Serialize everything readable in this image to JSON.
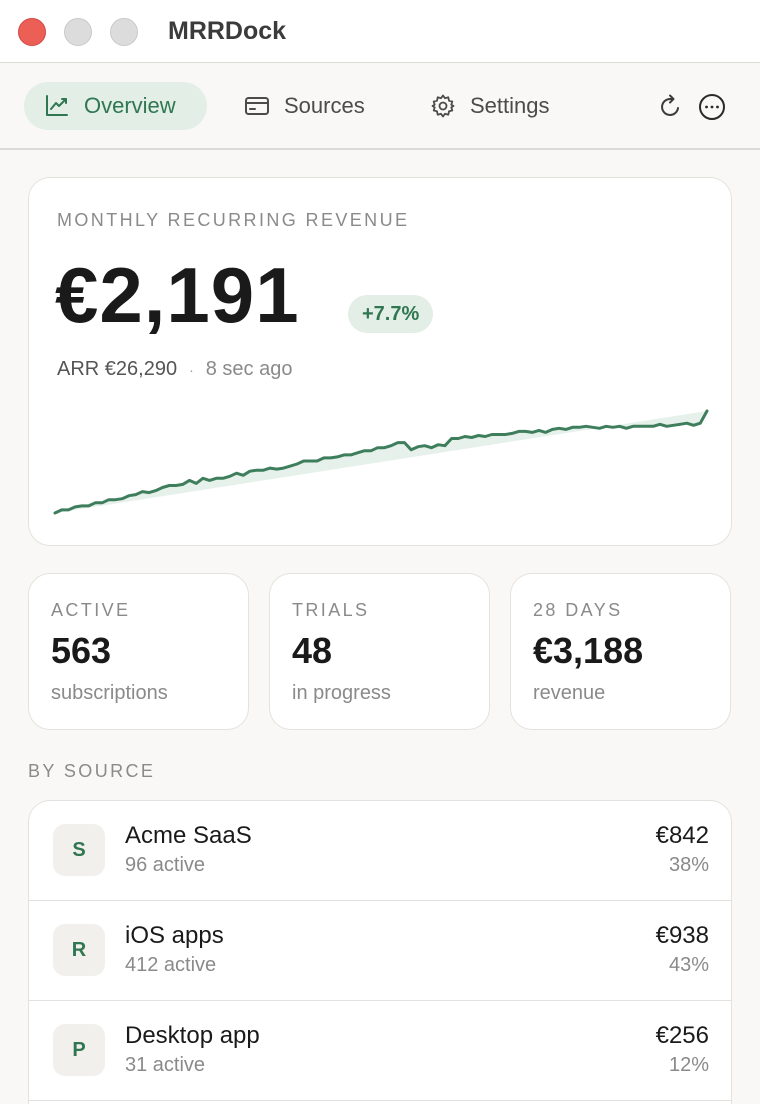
{
  "window": {
    "title": "MRRDock"
  },
  "tabs": [
    {
      "label": "Overview",
      "icon": "chart-line-icon",
      "active": true
    },
    {
      "label": "Sources",
      "icon": "card-icon",
      "active": false
    },
    {
      "label": "Settings",
      "icon": "gear-icon",
      "active": false
    }
  ],
  "toolbar": {
    "refresh_icon": "refresh-icon",
    "more_icon": "more-icon"
  },
  "mrr": {
    "label": "MONTHLY RECURRING REVENUE",
    "value": "€2,191",
    "change": "+7.7%",
    "arr": "ARR €26,290",
    "separator": "·",
    "updated": "8 sec  ago"
  },
  "colors": {
    "accent": "#2f7651",
    "accent_bg": "#e3eee7",
    "sparkline": "#3e7e5c"
  },
  "chart_data": {
    "type": "area",
    "values": [
      0.0,
      0.03,
      0.03,
      0.06,
      0.07,
      0.07,
      0.1,
      0.1,
      0.13,
      0.13,
      0.14,
      0.17,
      0.18,
      0.21,
      0.2,
      0.22,
      0.25,
      0.27,
      0.27,
      0.28,
      0.32,
      0.29,
      0.34,
      0.32,
      0.34,
      0.34,
      0.36,
      0.39,
      0.37,
      0.41,
      0.42,
      0.42,
      0.44,
      0.43,
      0.44,
      0.46,
      0.48,
      0.51,
      0.51,
      0.51,
      0.54,
      0.54,
      0.55,
      0.57,
      0.57,
      0.59,
      0.61,
      0.61,
      0.64,
      0.64,
      0.66,
      0.69,
      0.69,
      0.62,
      0.65,
      0.66,
      0.64,
      0.67,
      0.66,
      0.73,
      0.73,
      0.75,
      0.74,
      0.76,
      0.75,
      0.77,
      0.77,
      0.77,
      0.78,
      0.8,
      0.8,
      0.79,
      0.81,
      0.79,
      0.82,
      0.83,
      0.82,
      0.84,
      0.84,
      0.85,
      0.84,
      0.83,
      0.85,
      0.84,
      0.85,
      0.83,
      0.85,
      0.85,
      0.85,
      0.85,
      0.87,
      0.85,
      0.86,
      0.87,
      0.88,
      0.86,
      0.88,
      1.0
    ]
  },
  "stats": [
    {
      "label": "ACTIVE",
      "value": "563",
      "sub": "subscriptions"
    },
    {
      "label": "TRIALS",
      "value": "48",
      "sub": "in progress"
    },
    {
      "label": "28 DAYS",
      "value": "€3,188",
      "sub": "revenue"
    }
  ],
  "by_source": {
    "title": "BY SOURCE",
    "items": [
      {
        "initial": "S",
        "name": "Acme SaaS",
        "sub": "96 active",
        "amount": "€842",
        "pct": "38%"
      },
      {
        "initial": "R",
        "name": "iOS apps",
        "sub": "412 active",
        "amount": "€938",
        "pct": "43%"
      },
      {
        "initial": "P",
        "name": "Desktop app",
        "sub": "31 active",
        "amount": "€256",
        "pct": "12%"
      }
    ]
  }
}
